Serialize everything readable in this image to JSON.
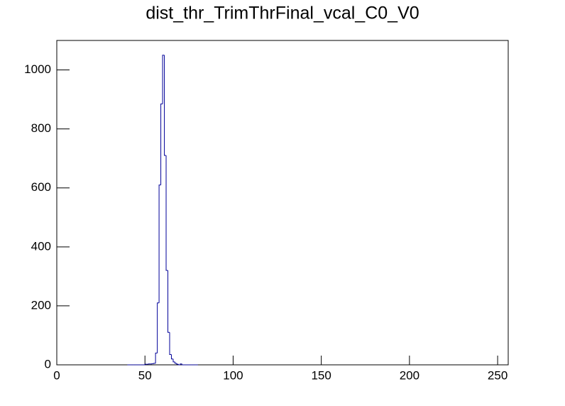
{
  "chart_data": {
    "type": "histogram",
    "title": "dist_thr_TrimThrFinal_vcal_C0_V0",
    "bins": [
      40,
      41,
      42,
      43,
      44,
      45,
      46,
      47,
      48,
      49,
      50,
      51,
      52,
      53,
      54,
      55,
      56,
      57,
      58,
      59,
      60,
      61,
      62,
      63,
      64,
      65,
      66,
      67,
      68,
      69,
      70,
      71,
      72,
      73,
      74,
      75,
      76,
      77,
      78,
      79,
      80
    ],
    "values": [
      0,
      0,
      0,
      0,
      0,
      0,
      0,
      0,
      0,
      0,
      2,
      2,
      3,
      3,
      4,
      5,
      40,
      210,
      610,
      885,
      1050,
      710,
      320,
      110,
      35,
      20,
      10,
      5,
      2,
      0,
      3,
      0,
      0,
      0,
      0,
      0,
      0,
      0,
      0,
      0
    ],
    "color": "#000099",
    "xlim": [
      0,
      256
    ],
    "xticks": [
      0,
      50,
      100,
      150,
      200,
      250
    ],
    "ylim": [
      0,
      1100
    ],
    "yticks": [
      0,
      200,
      400,
      600,
      800,
      1000
    ]
  }
}
